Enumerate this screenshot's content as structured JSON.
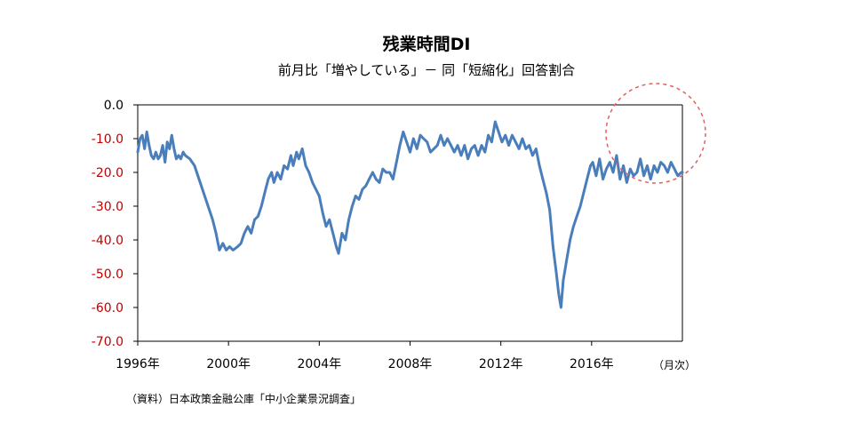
{
  "chart_data": {
    "type": "line",
    "title": "残業時間DI",
    "subtitle": "前月比「増やしている」－ 同「短縮化」回答割合",
    "x_unit_label": "（月次）",
    "source": "（資料）日本政策金融公庫「中小企業景況調査」",
    "x_tick_labels": [
      "1996年",
      "2000年",
      "2004年",
      "2008年",
      "2012年",
      "2016年"
    ],
    "x_tick_years": [
      1996,
      2000,
      2004,
      2008,
      2012,
      2016
    ],
    "y_tick_labels": [
      "0.0",
      "-10.0",
      "-20.0",
      "-30.0",
      "-40.0",
      "-50.0",
      "-60.0",
      "-70.0"
    ],
    "xlim": [
      1996.0,
      2020.0
    ],
    "ylim": [
      -70,
      0
    ],
    "grid": false,
    "line_color": "#4A7EBB",
    "axis_color": "#000000",
    "ytick_color_zero": "#000000",
    "ytick_color_negative": "#C00000",
    "highlight_circle_color": "#E06060",
    "series": [
      {
        "points": [
          [
            1996.0,
            -14
          ],
          [
            1996.1,
            -10
          ],
          [
            1996.2,
            -9
          ],
          [
            1996.3,
            -13
          ],
          [
            1996.4,
            -8
          ],
          [
            1996.5,
            -12
          ],
          [
            1996.6,
            -15
          ],
          [
            1996.7,
            -16
          ],
          [
            1996.8,
            -14
          ],
          [
            1996.9,
            -16
          ],
          [
            1997.0,
            -15
          ],
          [
            1997.1,
            -12
          ],
          [
            1997.2,
            -17
          ],
          [
            1997.3,
            -11
          ],
          [
            1997.4,
            -13
          ],
          [
            1997.5,
            -9
          ],
          [
            1997.6,
            -13
          ],
          [
            1997.7,
            -16
          ],
          [
            1997.8,
            -15
          ],
          [
            1997.9,
            -16
          ],
          [
            1998.0,
            -14
          ],
          [
            1998.1,
            -15
          ],
          [
            1998.3,
            -16
          ],
          [
            1998.5,
            -18
          ],
          [
            1998.7,
            -22
          ],
          [
            1998.9,
            -26
          ],
          [
            1999.1,
            -30
          ],
          [
            1999.3,
            -34
          ],
          [
            1999.45,
            -38
          ],
          [
            1999.6,
            -43
          ],
          [
            1999.75,
            -41
          ],
          [
            1999.9,
            -43
          ],
          [
            2000.05,
            -42
          ],
          [
            2000.2,
            -43
          ],
          [
            2000.4,
            -42
          ],
          [
            2000.55,
            -41
          ],
          [
            2000.7,
            -38
          ],
          [
            2000.85,
            -36
          ],
          [
            2001.0,
            -38
          ],
          [
            2001.15,
            -34
          ],
          [
            2001.3,
            -33
          ],
          [
            2001.45,
            -30
          ],
          [
            2001.6,
            -26
          ],
          [
            2001.75,
            -22
          ],
          [
            2001.9,
            -20
          ],
          [
            2002.0,
            -23
          ],
          [
            2002.15,
            -20
          ],
          [
            2002.3,
            -22
          ],
          [
            2002.45,
            -18
          ],
          [
            2002.6,
            -19
          ],
          [
            2002.75,
            -15
          ],
          [
            2002.85,
            -18
          ],
          [
            2003.0,
            -14
          ],
          [
            2003.1,
            -16
          ],
          [
            2003.25,
            -13
          ],
          [
            2003.4,
            -18
          ],
          [
            2003.55,
            -20
          ],
          [
            2003.7,
            -23
          ],
          [
            2003.85,
            -25
          ],
          [
            2004.0,
            -27
          ],
          [
            2004.15,
            -32
          ],
          [
            2004.3,
            -36
          ],
          [
            2004.45,
            -34
          ],
          [
            2004.6,
            -38
          ],
          [
            2004.75,
            -42
          ],
          [
            2004.85,
            -44
          ],
          [
            2005.0,
            -38
          ],
          [
            2005.15,
            -40
          ],
          [
            2005.3,
            -34
          ],
          [
            2005.45,
            -30
          ],
          [
            2005.6,
            -27
          ],
          [
            2005.75,
            -28
          ],
          [
            2005.9,
            -25
          ],
          [
            2006.05,
            -24
          ],
          [
            2006.2,
            -22
          ],
          [
            2006.35,
            -20
          ],
          [
            2006.5,
            -22
          ],
          [
            2006.65,
            -23
          ],
          [
            2006.8,
            -19
          ],
          [
            2006.95,
            -20
          ],
          [
            2007.1,
            -20
          ],
          [
            2007.25,
            -22
          ],
          [
            2007.4,
            -17
          ],
          [
            2007.55,
            -12
          ],
          [
            2007.7,
            -8
          ],
          [
            2007.85,
            -11
          ],
          [
            2008.0,
            -14
          ],
          [
            2008.15,
            -10
          ],
          [
            2008.3,
            -13
          ],
          [
            2008.45,
            -9
          ],
          [
            2008.6,
            -10
          ],
          [
            2008.75,
            -11
          ],
          [
            2008.9,
            -14
          ],
          [
            2009.05,
            -13
          ],
          [
            2009.2,
            -12
          ],
          [
            2009.35,
            -9
          ],
          [
            2009.5,
            -12
          ],
          [
            2009.65,
            -10
          ],
          [
            2009.8,
            -12
          ],
          [
            2009.95,
            -14
          ],
          [
            2010.1,
            -12
          ],
          [
            2010.25,
            -15
          ],
          [
            2010.4,
            -12
          ],
          [
            2010.55,
            -16
          ],
          [
            2010.7,
            -13
          ],
          [
            2010.85,
            -12
          ],
          [
            2011.0,
            -15
          ],
          [
            2011.15,
            -12
          ],
          [
            2011.3,
            -14
          ],
          [
            2011.45,
            -9
          ],
          [
            2011.6,
            -11
          ],
          [
            2011.75,
            -5
          ],
          [
            2011.9,
            -8
          ],
          [
            2012.05,
            -11
          ],
          [
            2012.2,
            -9
          ],
          [
            2012.35,
            -12
          ],
          [
            2012.5,
            -9
          ],
          [
            2012.65,
            -11
          ],
          [
            2012.8,
            -13
          ],
          [
            2012.95,
            -10
          ],
          [
            2013.1,
            -13
          ],
          [
            2013.25,
            -12
          ],
          [
            2013.4,
            -15
          ],
          [
            2013.55,
            -13
          ],
          [
            2013.7,
            -18
          ],
          [
            2013.85,
            -22
          ],
          [
            2014.0,
            -26
          ],
          [
            2014.15,
            -31
          ],
          [
            2014.3,
            -42
          ],
          [
            2014.45,
            -50
          ],
          [
            2014.55,
            -56
          ],
          [
            2014.65,
            -60
          ],
          [
            2014.75,
            -52
          ],
          [
            2014.9,
            -46
          ],
          [
            2015.05,
            -40
          ],
          [
            2015.2,
            -36
          ],
          [
            2015.35,
            -33
          ],
          [
            2015.5,
            -30
          ],
          [
            2015.65,
            -26
          ],
          [
            2015.8,
            -22
          ],
          [
            2015.95,
            -18
          ],
          [
            2016.05,
            -17
          ],
          [
            2016.2,
            -21
          ],
          [
            2016.35,
            -16
          ],
          [
            2016.5,
            -22
          ],
          [
            2016.65,
            -19
          ],
          [
            2016.8,
            -17
          ],
          [
            2016.95,
            -20
          ],
          [
            2017.1,
            -15
          ],
          [
            2017.25,
            -22
          ],
          [
            2017.4,
            -18
          ],
          [
            2017.55,
            -23
          ],
          [
            2017.7,
            -19
          ],
          [
            2017.85,
            -21
          ],
          [
            2018.0,
            -20
          ],
          [
            2018.15,
            -16
          ],
          [
            2018.3,
            -21
          ],
          [
            2018.45,
            -18
          ],
          [
            2018.6,
            -22
          ],
          [
            2018.75,
            -18
          ],
          [
            2018.9,
            -20
          ],
          [
            2019.05,
            -17
          ],
          [
            2019.2,
            -18
          ],
          [
            2019.35,
            -20
          ],
          [
            2019.5,
            -17
          ],
          [
            2019.65,
            -19
          ],
          [
            2019.8,
            -21
          ],
          [
            2019.95,
            -20
          ],
          [
            2020.0,
            -20
          ]
        ]
      }
    ]
  }
}
